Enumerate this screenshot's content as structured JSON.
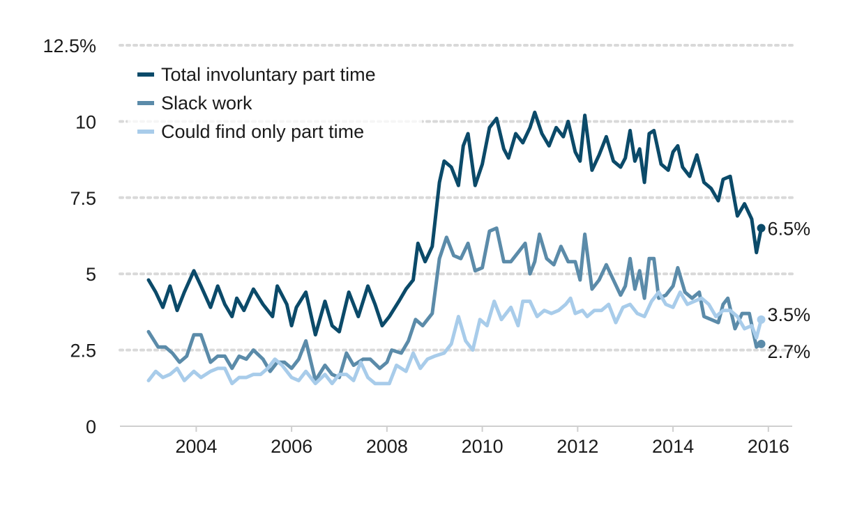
{
  "chart_data": {
    "type": "line",
    "title": "",
    "xlabel": "",
    "ylabel": "",
    "xlim": [
      2002.4,
      2016.5
    ],
    "ylim": [
      0,
      12.5
    ],
    "x_ticks": [
      {
        "value": 2004,
        "label": "2004"
      },
      {
        "value": 2006,
        "label": "2006"
      },
      {
        "value": 2008,
        "label": "2008"
      },
      {
        "value": 2010,
        "label": "2010"
      },
      {
        "value": 2012,
        "label": "2012"
      },
      {
        "value": 2014,
        "label": "2014"
      },
      {
        "value": 2016,
        "label": "2016"
      }
    ],
    "y_ticks": [
      {
        "value": 0,
        "label": "0"
      },
      {
        "value": 2.5,
        "label": "2.5"
      },
      {
        "value": 5,
        "label": "5"
      },
      {
        "value": 7.5,
        "label": "7.5"
      },
      {
        "value": 10,
        "label": "10"
      },
      {
        "value": 12.5,
        "label": "12.5%"
      }
    ],
    "legend_position": "top-left",
    "series": [
      {
        "name": "Total involuntary part time",
        "color": "#0b4a69",
        "end_label": "6.5%",
        "points": [
          [
            2003.0,
            4.8
          ],
          [
            2003.15,
            4.4
          ],
          [
            2003.3,
            3.9
          ],
          [
            2003.45,
            4.6
          ],
          [
            2003.6,
            3.8
          ],
          [
            2003.75,
            4.4
          ],
          [
            2003.95,
            5.1
          ],
          [
            2004.1,
            4.6
          ],
          [
            2004.3,
            3.9
          ],
          [
            2004.45,
            4.6
          ],
          [
            2004.6,
            4.0
          ],
          [
            2004.75,
            3.6
          ],
          [
            2004.85,
            4.2
          ],
          [
            2005.0,
            3.8
          ],
          [
            2005.2,
            4.5
          ],
          [
            2005.4,
            4.0
          ],
          [
            2005.6,
            3.6
          ],
          [
            2005.7,
            4.6
          ],
          [
            2005.9,
            4.0
          ],
          [
            2006.0,
            3.3
          ],
          [
            2006.1,
            3.9
          ],
          [
            2006.3,
            4.4
          ],
          [
            2006.5,
            3.0
          ],
          [
            2006.7,
            4.1
          ],
          [
            2006.85,
            3.3
          ],
          [
            2007.0,
            3.1
          ],
          [
            2007.2,
            4.4
          ],
          [
            2007.4,
            3.6
          ],
          [
            2007.6,
            4.6
          ],
          [
            2007.75,
            4.0
          ],
          [
            2007.9,
            3.3
          ],
          [
            2008.05,
            3.6
          ],
          [
            2008.25,
            4.1
          ],
          [
            2008.4,
            4.5
          ],
          [
            2008.55,
            4.8
          ],
          [
            2008.65,
            6.0
          ],
          [
            2008.8,
            5.4
          ],
          [
            2008.95,
            5.9
          ],
          [
            2009.1,
            8.0
          ],
          [
            2009.2,
            8.7
          ],
          [
            2009.35,
            8.5
          ],
          [
            2009.5,
            7.9
          ],
          [
            2009.6,
            9.2
          ],
          [
            2009.7,
            9.6
          ],
          [
            2009.85,
            7.9
          ],
          [
            2010.0,
            8.6
          ],
          [
            2010.15,
            9.8
          ],
          [
            2010.3,
            10.1
          ],
          [
            2010.45,
            9.1
          ],
          [
            2010.55,
            8.8
          ],
          [
            2010.7,
            9.6
          ],
          [
            2010.85,
            9.3
          ],
          [
            2011.0,
            9.8
          ],
          [
            2011.1,
            10.3
          ],
          [
            2011.25,
            9.6
          ],
          [
            2011.4,
            9.2
          ],
          [
            2011.55,
            9.8
          ],
          [
            2011.7,
            9.5
          ],
          [
            2011.8,
            10.0
          ],
          [
            2011.95,
            9.0
          ],
          [
            2012.05,
            8.7
          ],
          [
            2012.15,
            10.2
          ],
          [
            2012.3,
            8.4
          ],
          [
            2012.45,
            8.9
          ],
          [
            2012.6,
            9.5
          ],
          [
            2012.75,
            8.7
          ],
          [
            2012.9,
            8.5
          ],
          [
            2013.0,
            8.8
          ],
          [
            2013.1,
            9.7
          ],
          [
            2013.2,
            8.7
          ],
          [
            2013.3,
            9.1
          ],
          [
            2013.4,
            8.0
          ],
          [
            2013.5,
            9.6
          ],
          [
            2013.6,
            9.7
          ],
          [
            2013.75,
            8.6
          ],
          [
            2013.9,
            8.4
          ],
          [
            2014.0,
            9.0
          ],
          [
            2014.1,
            9.2
          ],
          [
            2014.2,
            8.5
          ],
          [
            2014.35,
            8.2
          ],
          [
            2014.5,
            8.9
          ],
          [
            2014.65,
            8.0
          ],
          [
            2014.8,
            7.8
          ],
          [
            2014.95,
            7.4
          ],
          [
            2015.05,
            8.1
          ],
          [
            2015.2,
            8.2
          ],
          [
            2015.35,
            6.9
          ],
          [
            2015.5,
            7.3
          ],
          [
            2015.65,
            6.8
          ],
          [
            2015.75,
            5.7
          ],
          [
            2015.85,
            6.5
          ]
        ]
      },
      {
        "name": "Slack work",
        "color": "#5b8ba9",
        "end_label": "2.7%",
        "points": [
          [
            2003.0,
            3.1
          ],
          [
            2003.2,
            2.6
          ],
          [
            2003.35,
            2.6
          ],
          [
            2003.5,
            2.4
          ],
          [
            2003.65,
            2.1
          ],
          [
            2003.8,
            2.3
          ],
          [
            2003.95,
            3.0
          ],
          [
            2004.1,
            3.0
          ],
          [
            2004.3,
            2.1
          ],
          [
            2004.45,
            2.3
          ],
          [
            2004.6,
            2.3
          ],
          [
            2004.75,
            1.9
          ],
          [
            2004.9,
            2.3
          ],
          [
            2005.05,
            2.2
          ],
          [
            2005.2,
            2.5
          ],
          [
            2005.4,
            2.2
          ],
          [
            2005.55,
            1.8
          ],
          [
            2005.7,
            2.1
          ],
          [
            2005.85,
            2.1
          ],
          [
            2006.0,
            1.9
          ],
          [
            2006.15,
            2.2
          ],
          [
            2006.3,
            2.8
          ],
          [
            2006.5,
            1.5
          ],
          [
            2006.7,
            2.0
          ],
          [
            2006.85,
            1.7
          ],
          [
            2007.0,
            1.6
          ],
          [
            2007.15,
            2.4
          ],
          [
            2007.3,
            2.0
          ],
          [
            2007.5,
            2.2
          ],
          [
            2007.65,
            2.2
          ],
          [
            2007.85,
            1.9
          ],
          [
            2008.0,
            2.1
          ],
          [
            2008.1,
            2.5
          ],
          [
            2008.3,
            2.4
          ],
          [
            2008.45,
            2.8
          ],
          [
            2008.6,
            3.5
          ],
          [
            2008.75,
            3.3
          ],
          [
            2008.95,
            3.7
          ],
          [
            2009.1,
            5.5
          ],
          [
            2009.25,
            6.2
          ],
          [
            2009.4,
            5.6
          ],
          [
            2009.55,
            5.5
          ],
          [
            2009.7,
            6.0
          ],
          [
            2009.85,
            5.1
          ],
          [
            2010.0,
            5.2
          ],
          [
            2010.15,
            6.4
          ],
          [
            2010.3,
            6.5
          ],
          [
            2010.45,
            5.4
          ],
          [
            2010.6,
            5.4
          ],
          [
            2010.75,
            5.7
          ],
          [
            2010.9,
            6.0
          ],
          [
            2011.0,
            5.0
          ],
          [
            2011.1,
            5.4
          ],
          [
            2011.2,
            6.3
          ],
          [
            2011.35,
            5.5
          ],
          [
            2011.5,
            5.3
          ],
          [
            2011.65,
            5.9
          ],
          [
            2011.8,
            5.4
          ],
          [
            2011.95,
            5.4
          ],
          [
            2012.05,
            4.8
          ],
          [
            2012.15,
            6.3
          ],
          [
            2012.3,
            4.5
          ],
          [
            2012.45,
            4.8
          ],
          [
            2012.6,
            5.3
          ],
          [
            2012.75,
            4.8
          ],
          [
            2012.9,
            4.3
          ],
          [
            2013.0,
            4.6
          ],
          [
            2013.1,
            5.5
          ],
          [
            2013.2,
            4.5
          ],
          [
            2013.3,
            5.1
          ],
          [
            2013.4,
            4.2
          ],
          [
            2013.5,
            5.5
          ],
          [
            2013.6,
            5.5
          ],
          [
            2013.7,
            4.2
          ],
          [
            2013.85,
            4.3
          ],
          [
            2014.0,
            4.6
          ],
          [
            2014.1,
            5.2
          ],
          [
            2014.25,
            4.4
          ],
          [
            2014.4,
            4.2
          ],
          [
            2014.55,
            4.4
          ],
          [
            2014.65,
            3.6
          ],
          [
            2014.8,
            3.5
          ],
          [
            2014.95,
            3.4
          ],
          [
            2015.05,
            4.0
          ],
          [
            2015.15,
            4.2
          ],
          [
            2015.3,
            3.2
          ],
          [
            2015.45,
            3.7
          ],
          [
            2015.6,
            3.7
          ],
          [
            2015.75,
            2.6
          ],
          [
            2015.85,
            2.7
          ]
        ]
      },
      {
        "name": "Could find only part time",
        "color": "#a8ccea",
        "end_label": "3.5%",
        "points": [
          [
            2003.0,
            1.5
          ],
          [
            2003.15,
            1.8
          ],
          [
            2003.3,
            1.6
          ],
          [
            2003.45,
            1.7
          ],
          [
            2003.6,
            1.9
          ],
          [
            2003.75,
            1.5
          ],
          [
            2003.95,
            1.8
          ],
          [
            2004.1,
            1.6
          ],
          [
            2004.3,
            1.8
          ],
          [
            2004.45,
            1.9
          ],
          [
            2004.6,
            1.9
          ],
          [
            2004.75,
            1.4
          ],
          [
            2004.9,
            1.6
          ],
          [
            2005.05,
            1.6
          ],
          [
            2005.2,
            1.7
          ],
          [
            2005.35,
            1.7
          ],
          [
            2005.5,
            1.9
          ],
          [
            2005.65,
            2.2
          ],
          [
            2005.8,
            2.0
          ],
          [
            2006.0,
            1.6
          ],
          [
            2006.15,
            1.5
          ],
          [
            2006.3,
            1.8
          ],
          [
            2006.5,
            1.4
          ],
          [
            2006.7,
            1.7
          ],
          [
            2006.85,
            1.4
          ],
          [
            2007.0,
            1.7
          ],
          [
            2007.15,
            1.7
          ],
          [
            2007.3,
            1.5
          ],
          [
            2007.45,
            2.1
          ],
          [
            2007.6,
            1.6
          ],
          [
            2007.75,
            1.4
          ],
          [
            2007.9,
            1.4
          ],
          [
            2008.05,
            1.4
          ],
          [
            2008.2,
            2.0
          ],
          [
            2008.4,
            1.8
          ],
          [
            2008.55,
            2.4
          ],
          [
            2008.7,
            1.9
          ],
          [
            2008.85,
            2.2
          ],
          [
            2009.0,
            2.3
          ],
          [
            2009.2,
            2.4
          ],
          [
            2009.35,
            2.7
          ],
          [
            2009.5,
            3.6
          ],
          [
            2009.65,
            2.8
          ],
          [
            2009.8,
            2.5
          ],
          [
            2009.95,
            3.5
          ],
          [
            2010.1,
            3.3
          ],
          [
            2010.25,
            4.1
          ],
          [
            2010.4,
            3.5
          ],
          [
            2010.6,
            3.9
          ],
          [
            2010.75,
            3.3
          ],
          [
            2010.85,
            4.1
          ],
          [
            2011.0,
            4.1
          ],
          [
            2011.15,
            3.6
          ],
          [
            2011.3,
            3.8
          ],
          [
            2011.45,
            3.7
          ],
          [
            2011.6,
            3.8
          ],
          [
            2011.75,
            4.0
          ],
          [
            2011.85,
            4.2
          ],
          [
            2011.95,
            3.7
          ],
          [
            2012.1,
            3.8
          ],
          [
            2012.2,
            3.6
          ],
          [
            2012.35,
            3.8
          ],
          [
            2012.5,
            3.8
          ],
          [
            2012.65,
            4.0
          ],
          [
            2012.8,
            3.4
          ],
          [
            2012.95,
            3.9
          ],
          [
            2013.1,
            4.0
          ],
          [
            2013.25,
            3.7
          ],
          [
            2013.4,
            3.6
          ],
          [
            2013.55,
            4.1
          ],
          [
            2013.7,
            4.4
          ],
          [
            2013.85,
            4.0
          ],
          [
            2014.0,
            3.9
          ],
          [
            2014.15,
            4.4
          ],
          [
            2014.3,
            4.0
          ],
          [
            2014.45,
            4.1
          ],
          [
            2014.6,
            4.2
          ],
          [
            2014.75,
            4.0
          ],
          [
            2014.9,
            3.6
          ],
          [
            2015.05,
            3.8
          ],
          [
            2015.2,
            3.8
          ],
          [
            2015.35,
            3.6
          ],
          [
            2015.5,
            3.2
          ],
          [
            2015.65,
            3.3
          ],
          [
            2015.75,
            2.9
          ],
          [
            2015.85,
            3.5
          ]
        ]
      }
    ]
  }
}
